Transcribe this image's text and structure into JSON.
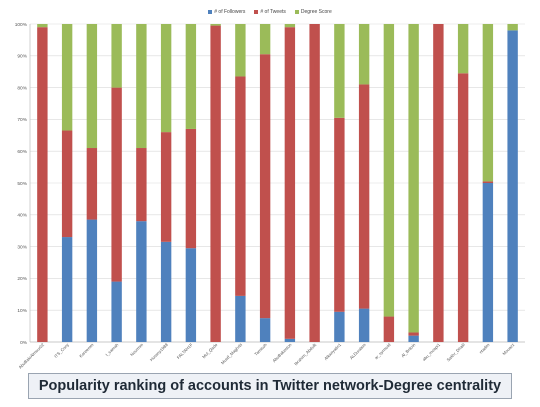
{
  "chart_data": {
    "type": "bar",
    "stacked": true,
    "percent": true,
    "categories": [
      "AbuBakrAlmour02",
      "ITS_Cony",
      "Kareemm",
      "I_samah",
      "Nourmm",
      "Hossny1988",
      "FALTAH1F",
      "Mul_Qado",
      "Mustf_Maghrbi",
      "Tamisoh",
      "AbuBakeston",
      "Ibrahim_Abdulk",
      "Alkariyatin1",
      "ALDuralsm",
      "ar_syrmuld",
      "Al_Britoin",
      "abu_moapi1",
      "Sakhr_Dhalil",
      "ntadim",
      "Mouazz"
    ],
    "series": [
      {
        "name": "# of Followers",
        "color": "#4f81bd",
        "values": [
          0,
          33,
          38.5,
          19,
          38,
          31.5,
          29.5,
          0,
          14.5,
          7.5,
          1,
          0,
          9.5,
          10.5,
          0,
          2,
          0,
          0,
          50,
          98
        ]
      },
      {
        "name": "# of Tweets",
        "color": "#c0504d",
        "values": [
          99,
          33.5,
          22.5,
          61,
          23,
          34.5,
          37.5,
          99.5,
          69,
          83,
          98,
          100,
          61,
          70.5,
          8,
          1,
          100,
          84.5,
          0.5,
          0
        ]
      },
      {
        "name": "Degree Score",
        "color": "#9bbb59",
        "values": [
          1,
          33.5,
          39,
          20,
          39,
          34,
          33,
          0.5,
          16.5,
          9.5,
          1,
          0,
          29.5,
          19,
          92,
          97,
          0,
          15.5,
          49.5,
          2
        ]
      }
    ],
    "yticks": [
      "0%",
      "10%",
      "20%",
      "30%",
      "40%",
      "50%",
      "60%",
      "70%",
      "80%",
      "90%",
      "100%"
    ],
    "ylim": [
      0,
      100
    ],
    "grid": true,
    "legend": "top-center"
  },
  "caption": "Popularity ranking of accounts in Twitter network-Degree centrality"
}
